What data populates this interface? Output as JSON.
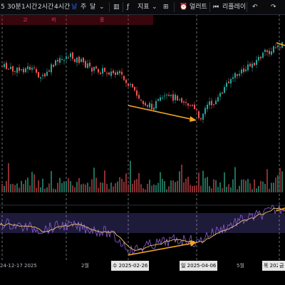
{
  "toolbar": {
    "intervals": [
      "5",
      "30분",
      "1시간",
      "2시간",
      "4시간",
      "날",
      "주",
      "달"
    ],
    "active_interval": "날",
    "indicators_label": "지표",
    "alert_label": "얼러트",
    "replay_label": "리플레이"
  },
  "ohlc_strip": {
    "open_label": "고",
    "low_label": "저",
    "close_label": "종"
  },
  "x_axis": {
    "labels": [
      "24-12-17",
      "2025",
      "2월",
      "수 2025-02-26",
      "일 2025-04-06",
      "5월",
      "목 202",
      "금"
    ]
  },
  "colors": {
    "up": "#26a69a",
    "down": "#ef5350",
    "arrow": "#f5a623",
    "rsi": "#7e57c2",
    "rsi_ma": "#f0c36b",
    "rsi_band": "#1e1a3a",
    "crosshair": "#9aa0a6"
  },
  "chart_data": {
    "type": "candlestick",
    "crosshair_dates": [
      "2025-02-26",
      "2025-04-06"
    ],
    "annotations": [
      "bullish-divergence-price-arrow",
      "bullish-divergence-rsi-arrow"
    ],
    "panes": [
      "price",
      "volume",
      "rsi"
    ]
  }
}
